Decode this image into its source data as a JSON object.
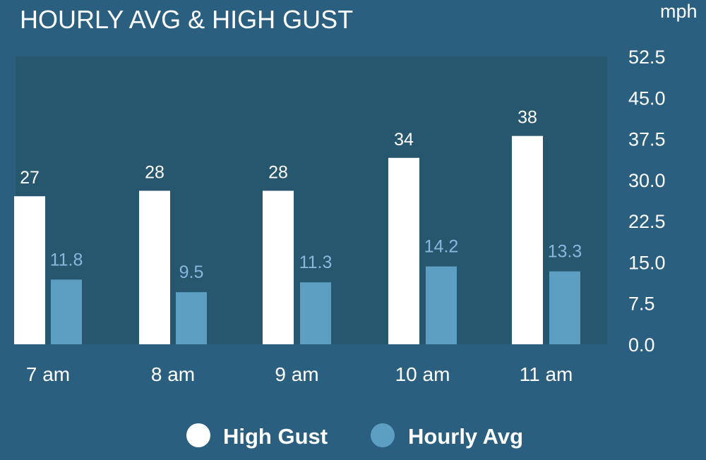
{
  "colors": {
    "background": "#2b5f80",
    "plot_background": "#27566f",
    "high_gust": "#ffffff",
    "hourly_avg": "#5d9fc3",
    "hourly_avg_label": "#8ab6dc",
    "text": "#ffffff"
  },
  "chart_data": {
    "type": "bar",
    "title": "HOURLY AVG & HIGH GUST",
    "ylabel": "mph",
    "xlabel": "",
    "categories": [
      "7 am",
      "8 am",
      "9 am",
      "10 am",
      "11 am"
    ],
    "series": [
      {
        "name": "High Gust",
        "values": [
          27,
          28,
          28,
          34,
          38
        ],
        "labels": [
          "27",
          "28",
          "28",
          "34",
          "38"
        ]
      },
      {
        "name": "Hourly Avg",
        "values": [
          11.8,
          9.5,
          11.3,
          14.2,
          13.3
        ],
        "labels": [
          "11.8",
          "9.5",
          "11.3",
          "14.2",
          "13.3"
        ]
      }
    ],
    "ylim": [
      0,
      52.5
    ],
    "yticks": [
      "0.0",
      "7.5",
      "15.0",
      "22.5",
      "30.0",
      "37.5",
      "45.0",
      "52.5"
    ],
    "y_axis_side": "right",
    "grid": false,
    "legend_position": "bottom-center"
  }
}
